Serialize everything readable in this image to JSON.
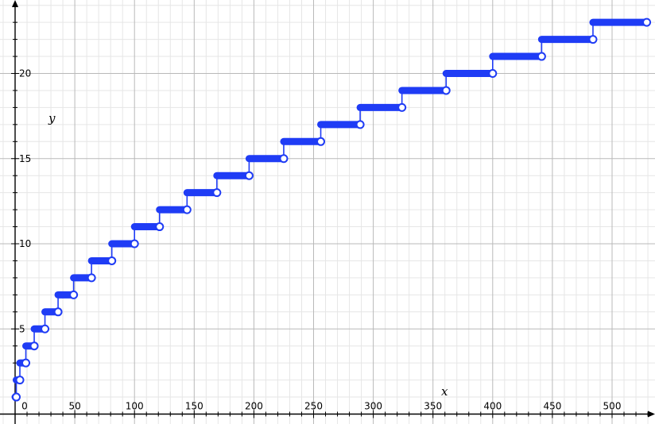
{
  "chart_data": {
    "type": "line",
    "xlabel": "x",
    "ylabel": "y",
    "xlim": [
      -12,
      535
    ],
    "ylim": [
      -1,
      24
    ],
    "grid": true,
    "x_ticks": [
      "0",
      "50",
      "100",
      "150",
      "200",
      "250",
      "300",
      "350",
      "400",
      "450",
      "500"
    ],
    "y_ticks": [
      "5",
      "10",
      "15",
      "20"
    ],
    "series": [
      {
        "style": "step",
        "color": "#1f3cf5",
        "steps": [
          {
            "y": 1,
            "x_start": 0,
            "x_end": 1
          },
          {
            "y": 2,
            "x_start": 1,
            "x_end": 4
          },
          {
            "y": 3,
            "x_start": 4,
            "x_end": 9
          },
          {
            "y": 4,
            "x_start": 9,
            "x_end": 16
          },
          {
            "y": 5,
            "x_start": 16,
            "x_end": 25
          },
          {
            "y": 6,
            "x_start": 25,
            "x_end": 36
          },
          {
            "y": 7,
            "x_start": 36,
            "x_end": 49
          },
          {
            "y": 8,
            "x_start": 49,
            "x_end": 64
          },
          {
            "y": 9,
            "x_start": 64,
            "x_end": 81
          },
          {
            "y": 10,
            "x_start": 81,
            "x_end": 100
          },
          {
            "y": 11,
            "x_start": 100,
            "x_end": 121
          },
          {
            "y": 12,
            "x_start": 121,
            "x_end": 144
          },
          {
            "y": 13,
            "x_start": 144,
            "x_end": 169
          },
          {
            "y": 14,
            "x_start": 169,
            "x_end": 196
          },
          {
            "y": 15,
            "x_start": 196,
            "x_end": 225
          },
          {
            "y": 16,
            "x_start": 225,
            "x_end": 256
          },
          {
            "y": 17,
            "x_start": 256,
            "x_end": 289
          },
          {
            "y": 18,
            "x_start": 289,
            "x_end": 324
          },
          {
            "y": 19,
            "x_start": 324,
            "x_end": 361
          },
          {
            "y": 20,
            "x_start": 361,
            "x_end": 400
          },
          {
            "y": 21,
            "x_start": 400,
            "x_end": 441
          },
          {
            "y": 22,
            "x_start": 441,
            "x_end": 484
          },
          {
            "y": 23,
            "x_start": 484,
            "x_end": 529
          }
        ]
      }
    ]
  }
}
